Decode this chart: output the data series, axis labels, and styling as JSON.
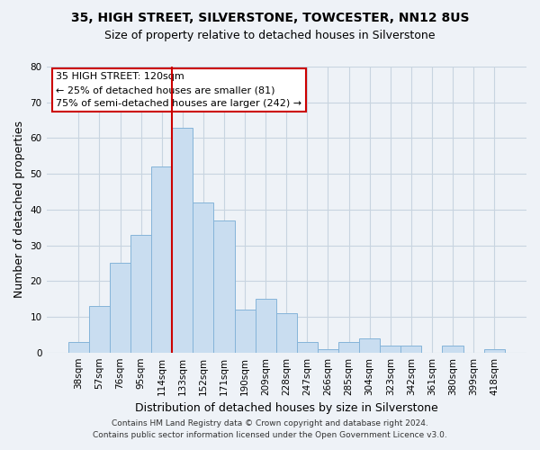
{
  "title": "35, HIGH STREET, SILVERSTONE, TOWCESTER, NN12 8US",
  "subtitle": "Size of property relative to detached houses in Silverstone",
  "xlabel": "Distribution of detached houses by size in Silverstone",
  "ylabel": "Number of detached properties",
  "bar_labels": [
    "38sqm",
    "57sqm",
    "76sqm",
    "95sqm",
    "114sqm",
    "133sqm",
    "152sqm",
    "171sqm",
    "190sqm",
    "209sqm",
    "228sqm",
    "247sqm",
    "266sqm",
    "285sqm",
    "304sqm",
    "323sqm",
    "342sqm",
    "361sqm",
    "380sqm",
    "399sqm",
    "418sqm"
  ],
  "bar_values": [
    3,
    13,
    25,
    33,
    52,
    63,
    42,
    37,
    12,
    15,
    11,
    3,
    1,
    3,
    4,
    2,
    2,
    0,
    2,
    0,
    1
  ],
  "bar_color": "#c9ddf0",
  "bar_edgecolor": "#85b4d9",
  "vline_x_idx": 4.5,
  "vline_color": "#cc0000",
  "ylim": [
    0,
    80
  ],
  "yticks": [
    0,
    10,
    20,
    30,
    40,
    50,
    60,
    70,
    80
  ],
  "annotation_title": "35 HIGH STREET: 120sqm",
  "annotation_line1": "← 25% of detached houses are smaller (81)",
  "annotation_line2": "75% of semi-detached houses are larger (242) →",
  "annotation_box_facecolor": "#ffffff",
  "annotation_box_edgecolor": "#cc0000",
  "footer1": "Contains HM Land Registry data © Crown copyright and database right 2024.",
  "footer2": "Contains public sector information licensed under the Open Government Licence v3.0.",
  "bg_color": "#eef2f7",
  "grid_color": "#c8d4e0",
  "title_fontsize": 10,
  "subtitle_fontsize": 9,
  "tick_fontsize": 7.5,
  "ylabel_fontsize": 9,
  "xlabel_fontsize": 9
}
